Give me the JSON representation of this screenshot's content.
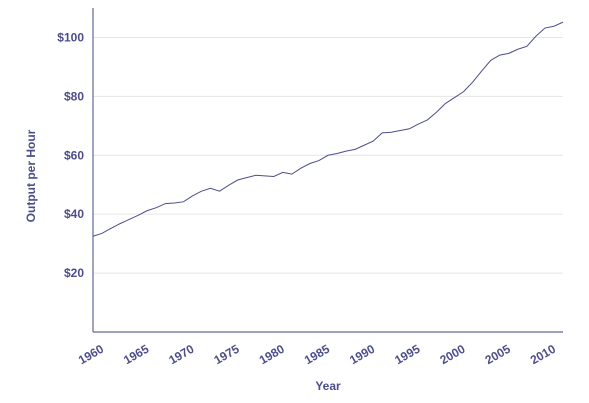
{
  "colors": {
    "ink": "#4d4d8c",
    "grid": "#e6e6e6",
    "axis": "#666699",
    "line": "#4d4d8c"
  },
  "chart_data": {
    "type": "line",
    "title": "",
    "xlabel": "Year",
    "ylabel": "Output per Hour",
    "xlim": [
      1960,
      2012
    ],
    "ylim": [
      0,
      110
    ],
    "x_ticks": [
      1960,
      1965,
      1970,
      1975,
      1980,
      1985,
      1990,
      1995,
      2000,
      2005,
      2010
    ],
    "x_tick_labels": [
      "1960",
      "1965",
      "1970",
      "1975",
      "1980",
      "1985",
      "1990",
      "1995",
      "2000",
      "2005",
      "2010"
    ],
    "y_ticks": [
      20,
      40,
      60,
      80,
      100
    ],
    "y_tick_labels": [
      "$20",
      "$40",
      "$60",
      "$80",
      "$100"
    ],
    "grid": "horizontal",
    "legend": "none",
    "series": [
      {
        "x": [
          1960,
          1961,
          1962,
          1963,
          1964,
          1965,
          1966,
          1967,
          1968,
          1969,
          1970,
          1971,
          1972,
          1973,
          1974,
          1975,
          1976,
          1977,
          1978,
          1979,
          1980,
          1981,
          1982,
          1983,
          1984,
          1985,
          1986,
          1987,
          1988,
          1989,
          1990,
          1991,
          1992,
          1993,
          1994,
          1995,
          1996,
          1997,
          1998,
          1999,
          2000,
          2001,
          2002,
          2003,
          2004,
          2005,
          2006,
          2007,
          2008,
          2009,
          2010,
          2011,
          2012
        ],
        "values": [
          32.5,
          33.5,
          35.2,
          36.8,
          38.2,
          39.6,
          41.2,
          42.2,
          43.6,
          43.8,
          44.2,
          46.2,
          47.8,
          48.8,
          47.8,
          49.8,
          51.6,
          52.4,
          53.2,
          53.0,
          52.8,
          54.2,
          53.6,
          55.6,
          57.2,
          58.2,
          60.0,
          60.6,
          61.4,
          62.0,
          63.4,
          64.8,
          67.6,
          67.8,
          68.4,
          69.0,
          70.6,
          72.0,
          74.6,
          77.6,
          79.6,
          81.6,
          84.8,
          88.6,
          92.2,
          94.0,
          94.6,
          96.0,
          97.0,
          100.4,
          103.2,
          103.8,
          105.2
        ]
      }
    ]
  }
}
